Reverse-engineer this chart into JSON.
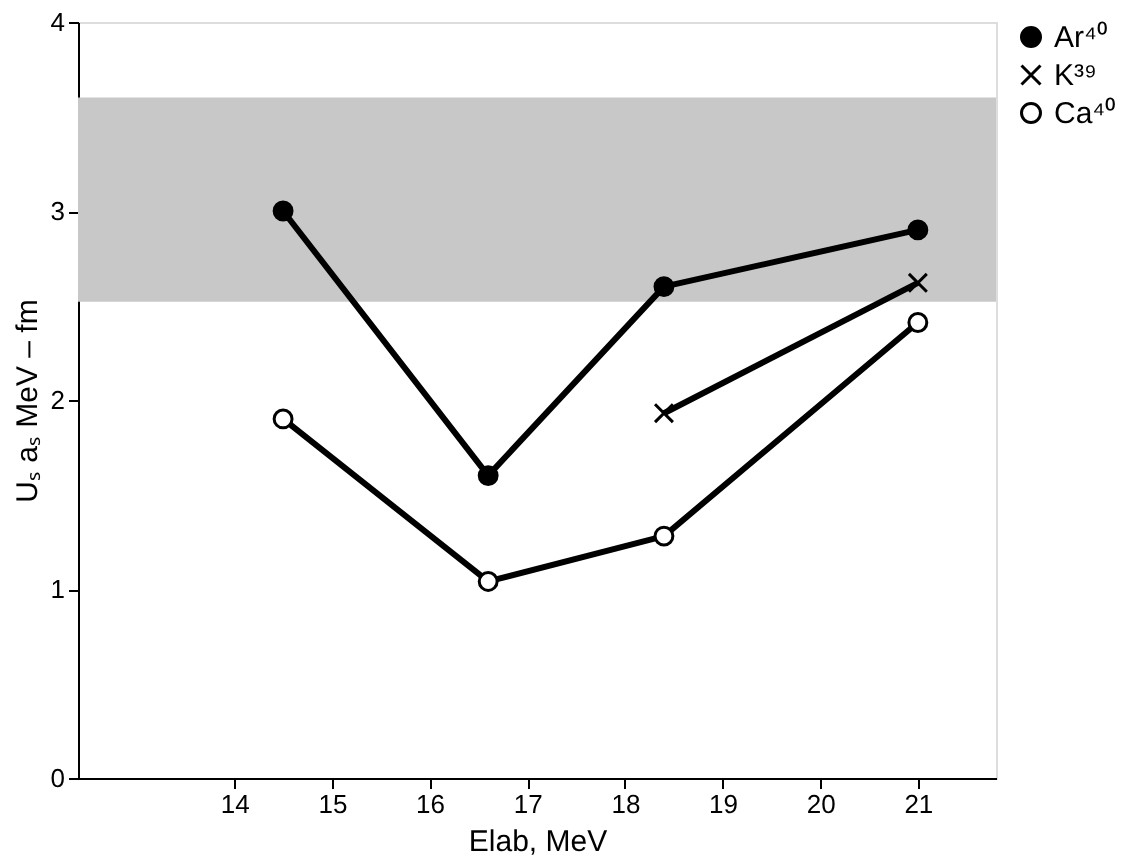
{
  "chart_data": {
    "type": "line",
    "xlabel": "Elab, MeV",
    "ylabel": "Uₛ aₛ MeV – fm",
    "xlim": [
      12.4,
      21.8
    ],
    "ylim": [
      0,
      4
    ],
    "xticks": [
      14,
      15,
      16,
      17,
      18,
      19,
      20,
      21
    ],
    "yticks": [
      0,
      1,
      2,
      3,
      4
    ],
    "grid": false,
    "legend": "right",
    "line_style": "solid",
    "bands": [
      {
        "axis": "y",
        "from": 2.52,
        "to": 3.6,
        "color": "#c8c8c8"
      }
    ],
    "series": [
      {
        "name": "Ar⁴⁰",
        "color": "#000000",
        "marker": "circle",
        "x": [
          14.5,
          16.6,
          18.4,
          21.0
        ],
        "values": [
          3.0,
          1.6,
          2.6,
          2.9
        ]
      },
      {
        "name": "K³⁹",
        "color": "#000000",
        "marker": "cross",
        "x": [
          18.4,
          21.0
        ],
        "values": [
          1.93,
          2.62
        ]
      },
      {
        "name": "Ca⁴⁰",
        "color": "#ffffff",
        "marker": "circle",
        "x": [
          14.5,
          16.6,
          18.4,
          21.0
        ],
        "values": [
          1.9,
          1.04,
          1.28,
          2.41
        ]
      }
    ]
  }
}
